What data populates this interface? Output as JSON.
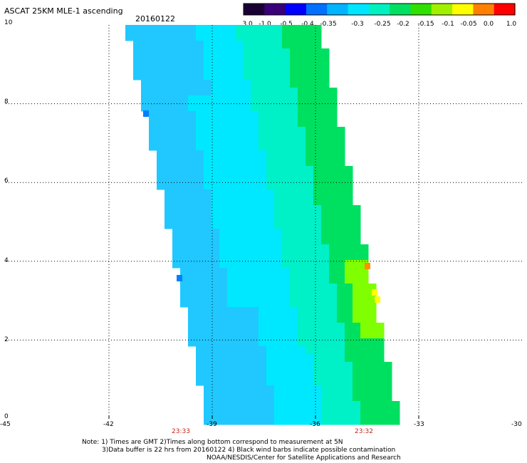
{
  "header": {
    "title": "ASCAT 25KM MLE-1 ascending",
    "date": "20160122"
  },
  "colorbar": {
    "labels": [
      "-3.0",
      "-1.0",
      "-0.5",
      "-0.4",
      "-0.35",
      "-0.3",
      "-0.25",
      "-0.2",
      "-0.15",
      "-0.1",
      "-0.05",
      "0.0",
      "1.0"
    ],
    "colors": [
      "#1a0033",
      "#3a007a",
      "#0000ff",
      "#0070ff",
      "#00b4ff",
      "#00e6ff",
      "#00f0c0",
      "#00e060",
      "#30e000",
      "#a0f000",
      "#ffff00",
      "#ff8000",
      "#ff0000"
    ]
  },
  "map": {
    "xlim": [
      -45,
      -30
    ],
    "ylim": [
      0,
      10
    ],
    "x_ticks": [
      "-45",
      "-42",
      "-39",
      "-36",
      "-33",
      "-30"
    ],
    "y_ticks": [
      "0",
      "2",
      "4",
      "6",
      "8",
      "10"
    ],
    "pass_times": [
      "23:33",
      "23:32"
    ],
    "swath_colors": {
      "light_blue": "#00e8ff",
      "mid_blue": "#20c8ff",
      "deep_blue": "#0080ff",
      "cyan_green": "#00f0c8",
      "green": "#00e060",
      "yellow_green": "#80ff00",
      "yellow": "#ffff00",
      "orange": "#ff9000"
    }
  },
  "footer": {
    "line1": "Note: 1) Times are GMT 2)Times along bottom correspond to measurement at 5N",
    "line2": "3)Data buffer is 22 hrs from 20160122 4) Black wind barbs indicate possible contamination",
    "line3": "NOAA/NESDIS/Center for Satellite Applications and Research"
  }
}
